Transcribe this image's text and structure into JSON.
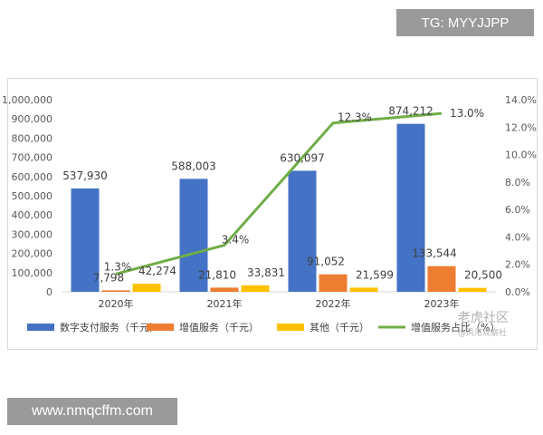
{
  "watermark_top": "TG: MYYJJPP",
  "watermark_bottom": "www.nmqcffm.com",
  "brand_watermark": {
    "main": "老虎社区",
    "sub": "@风港观察社"
  },
  "chart_data": {
    "type": "bar",
    "categories": [
      "2020年",
      "2021年",
      "2022年",
      "2023年"
    ],
    "series": [
      {
        "name": "数字支付服务（千元）",
        "type": "bar",
        "axis": "left",
        "color": "#4472c4",
        "values": [
          537930,
          588003,
          630097,
          874212
        ],
        "labels": [
          "537,930",
          "588,003",
          "630,097",
          "874,212"
        ]
      },
      {
        "name": "增值服务（千元）",
        "type": "bar",
        "axis": "left",
        "color": "#ed7d31",
        "values": [
          7798,
          21810,
          91052,
          133544
        ],
        "labels": [
          "7,798",
          "21,810",
          "91,052",
          "133,544"
        ]
      },
      {
        "name": "其他（千元）",
        "type": "bar",
        "axis": "left",
        "color": "#ffc000",
        "values": [
          42274,
          33831,
          21599,
          20500
        ],
        "labels": [
          "42,274",
          "33,831",
          "21,599",
          "20,500"
        ]
      },
      {
        "name": "增值服务占比（%）",
        "type": "line",
        "axis": "right",
        "color": "#70ad47",
        "values": [
          1.3,
          3.4,
          12.3,
          13.0
        ],
        "labels": [
          "1.3%",
          "3.4%",
          "12.3%",
          "13.0%"
        ]
      }
    ],
    "y_left": {
      "min": 0,
      "max": 1000000,
      "ticks": [
        "0",
        "100,000",
        "200,000",
        "300,000",
        "400,000",
        "500,000",
        "600,000",
        "700,000",
        "800,000",
        "900,000",
        "1,000,000"
      ]
    },
    "y_right": {
      "min": 0,
      "max": 14,
      "ticks": [
        "0.0%",
        "2.0%",
        "4.0%",
        "6.0%",
        "8.0%",
        "10.0%",
        "12.0%",
        "14.0%"
      ]
    },
    "legend_position": "bottom",
    "grid": false
  }
}
